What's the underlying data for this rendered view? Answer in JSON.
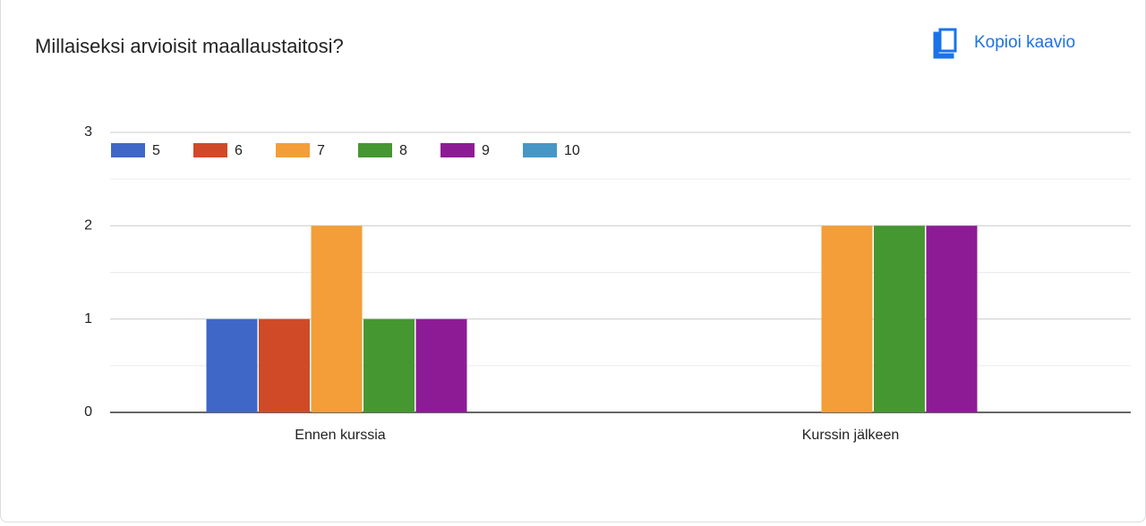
{
  "chart_data": {
    "type": "bar",
    "title": "Millaiseksi arvioisit maallaustaitosi?",
    "action": "Kopioi kaavio",
    "categories": [
      "Ennen kurssia",
      "Kurssin jälkeen"
    ],
    "series": [
      {
        "name": "5",
        "color": "#3f67c8",
        "values": [
          1,
          0
        ]
      },
      {
        "name": "6",
        "color": "#d04a27",
        "values": [
          1,
          0
        ]
      },
      {
        "name": "7",
        "color": "#f39e38",
        "values": [
          2,
          2
        ]
      },
      {
        "name": "8",
        "color": "#459731",
        "values": [
          1,
          2
        ]
      },
      {
        "name": "9",
        "color": "#8e1b96",
        "values": [
          1,
          2
        ]
      },
      {
        "name": "10",
        "color": "#4797c6",
        "values": [
          0,
          0
        ]
      }
    ],
    "ylim": [
      0,
      3
    ],
    "yticks": [
      0,
      1,
      2,
      3
    ],
    "minor_yticks": [
      0.5,
      1.5,
      2.5
    ],
    "grid": true,
    "legend": "top"
  }
}
